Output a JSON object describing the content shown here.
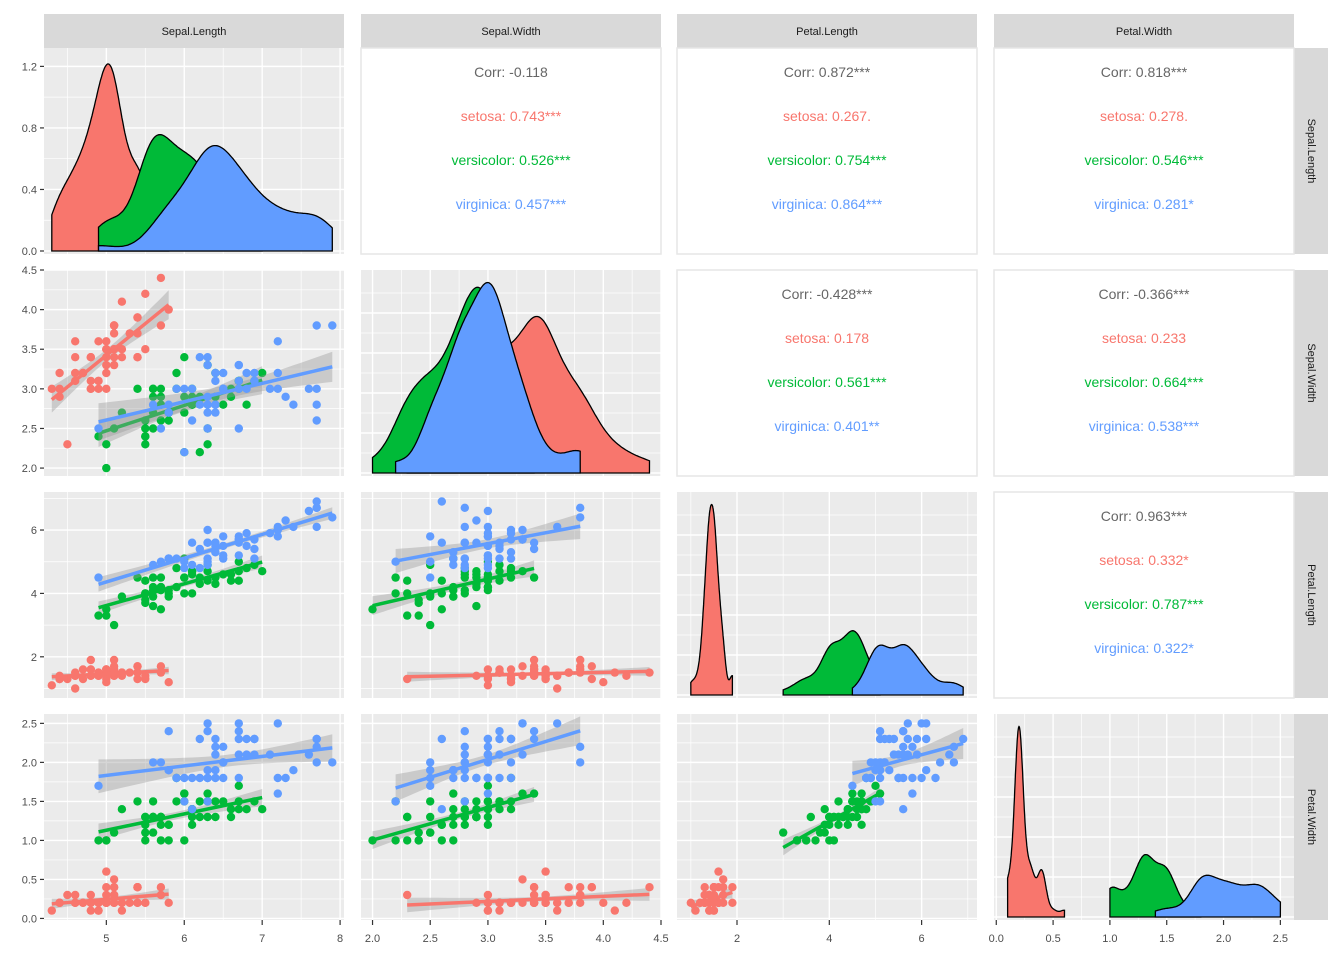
{
  "chart_data": {
    "type": "pairs",
    "title": "",
    "variables": [
      "Sepal.Length",
      "Sepal.Width",
      "Petal.Length",
      "Petal.Width"
    ],
    "species": [
      "setosa",
      "versicolor",
      "virginica"
    ],
    "colors": {
      "setosa": "#F8766D",
      "versicolor": "#00BA38",
      "virginica": "#619CFF",
      "overall": "#666666",
      "panel_bg": "#EBEBEB",
      "strip_bg": "#D9D9D9",
      "grid": "#FFFFFF"
    },
    "axes": {
      "Sepal.Length": {
        "range": [
          4.2,
          8.05
        ],
        "ticks": [
          5,
          6,
          7,
          8
        ],
        "tick_labels": [
          "5",
          "6",
          "7",
          "8"
        ]
      },
      "Sepal.Width": {
        "range": [
          1.9,
          4.5
        ],
        "ticks": [
          2.0,
          2.5,
          3.0,
          3.5,
          4.0,
          4.5
        ],
        "tick_labels": [
          "2.0",
          "2.5",
          "3.0",
          "3.5",
          "4.0",
          "4.5"
        ]
      },
      "Petal.Length": {
        "range": [
          0.7,
          7.2
        ],
        "ticks": [
          2,
          4,
          6
        ],
        "tick_labels": [
          "2",
          "4",
          "6"
        ]
      },
      "Petal.Width": {
        "range": [
          -0.02,
          2.62
        ],
        "ticks": [
          0.0,
          0.5,
          1.0,
          1.5,
          2.0,
          2.5
        ],
        "tick_labels": [
          "0.0",
          "0.5",
          "1.0",
          "1.5",
          "2.0",
          "2.5"
        ]
      },
      "density_left": {
        "range": [
          0,
          1.3
        ],
        "ticks": [
          0.0,
          0.4,
          0.8,
          1.2
        ],
        "tick_labels": [
          "0.0",
          "0.4",
          "0.8",
          "1.2"
        ]
      }
    },
    "correlations": [
      {
        "row": "Sepal.Length",
        "col": "Sepal.Width",
        "overall": "Corr: -0.118",
        "setosa": "setosa: 0.743***",
        "versicolor": "versicolor: 0.526***",
        "virginica": "virginica: 0.457***"
      },
      {
        "row": "Sepal.Length",
        "col": "Petal.Length",
        "overall": "Corr: 0.872***",
        "setosa": "setosa: 0.267.",
        "versicolor": "versicolor: 0.754***",
        "virginica": "virginica: 0.864***"
      },
      {
        "row": "Sepal.Length",
        "col": "Petal.Width",
        "overall": "Corr: 0.818***",
        "setosa": "setosa: 0.278.",
        "versicolor": "versicolor: 0.546***",
        "virginica": "virginica: 0.281*"
      },
      {
        "row": "Sepal.Width",
        "col": "Petal.Length",
        "overall": "Corr: -0.428***",
        "setosa": "setosa: 0.178",
        "versicolor": "versicolor: 0.561***",
        "virginica": "virginica: 0.401**"
      },
      {
        "row": "Sepal.Width",
        "col": "Petal.Width",
        "overall": "Corr: -0.366***",
        "setosa": "setosa: 0.233",
        "versicolor": "versicolor: 0.664***",
        "virginica": "virginica: 0.538***"
      },
      {
        "row": "Petal.Length",
        "col": "Petal.Width",
        "overall": "Corr: 0.963***",
        "setosa": "setosa: 0.332*",
        "versicolor": "versicolor: 0.787***",
        "virginica": "virginica: 0.322*"
      }
    ],
    "points": {
      "setosa": [
        [
          5.1,
          3.5,
          1.4,
          0.2
        ],
        [
          4.9,
          3.0,
          1.4,
          0.2
        ],
        [
          4.7,
          3.2,
          1.3,
          0.2
        ],
        [
          4.6,
          3.1,
          1.5,
          0.2
        ],
        [
          5.0,
          3.6,
          1.4,
          0.2
        ],
        [
          5.4,
          3.9,
          1.7,
          0.4
        ],
        [
          4.6,
          3.4,
          1.4,
          0.3
        ],
        [
          5.0,
          3.4,
          1.5,
          0.2
        ],
        [
          4.4,
          2.9,
          1.4,
          0.2
        ],
        [
          4.9,
          3.1,
          1.5,
          0.1
        ],
        [
          5.4,
          3.7,
          1.5,
          0.2
        ],
        [
          4.8,
          3.4,
          1.6,
          0.2
        ],
        [
          4.8,
          3.0,
          1.4,
          0.1
        ],
        [
          4.3,
          3.0,
          1.1,
          0.1
        ],
        [
          5.8,
          4.0,
          1.2,
          0.2
        ],
        [
          5.7,
          4.4,
          1.5,
          0.4
        ],
        [
          5.4,
          3.9,
          1.3,
          0.4
        ],
        [
          5.1,
          3.5,
          1.4,
          0.3
        ],
        [
          5.7,
          3.8,
          1.7,
          0.3
        ],
        [
          5.1,
          3.8,
          1.5,
          0.3
        ],
        [
          5.4,
          3.4,
          1.7,
          0.2
        ],
        [
          5.1,
          3.7,
          1.5,
          0.4
        ],
        [
          4.6,
          3.6,
          1.0,
          0.2
        ],
        [
          5.1,
          3.3,
          1.7,
          0.5
        ],
        [
          4.8,
          3.4,
          1.9,
          0.2
        ],
        [
          5.0,
          3.0,
          1.6,
          0.2
        ],
        [
          5.0,
          3.4,
          1.6,
          0.4
        ],
        [
          5.2,
          3.5,
          1.5,
          0.2
        ],
        [
          5.2,
          3.4,
          1.4,
          0.2
        ],
        [
          4.7,
          3.2,
          1.6,
          0.2
        ],
        [
          4.8,
          3.1,
          1.6,
          0.2
        ],
        [
          5.4,
          3.4,
          1.5,
          0.4
        ],
        [
          5.2,
          4.1,
          1.5,
          0.1
        ],
        [
          5.5,
          4.2,
          1.4,
          0.2
        ],
        [
          4.9,
          3.1,
          1.5,
          0.2
        ],
        [
          5.0,
          3.2,
          1.2,
          0.2
        ],
        [
          5.5,
          3.5,
          1.3,
          0.2
        ],
        [
          4.9,
          3.6,
          1.4,
          0.1
        ],
        [
          4.4,
          3.0,
          1.3,
          0.2
        ],
        [
          5.1,
          3.4,
          1.5,
          0.2
        ],
        [
          5.0,
          3.5,
          1.3,
          0.3
        ],
        [
          4.5,
          2.3,
          1.3,
          0.3
        ],
        [
          4.4,
          3.2,
          1.3,
          0.2
        ],
        [
          5.0,
          3.5,
          1.6,
          0.6
        ],
        [
          5.1,
          3.8,
          1.9,
          0.4
        ],
        [
          4.8,
          3.0,
          1.4,
          0.3
        ],
        [
          5.1,
          3.8,
          1.6,
          0.2
        ],
        [
          4.6,
          3.2,
          1.4,
          0.2
        ],
        [
          5.3,
          3.7,
          1.5,
          0.2
        ],
        [
          5.0,
          3.3,
          1.4,
          0.2
        ]
      ],
      "versicolor": [
        [
          7.0,
          3.2,
          4.7,
          1.4
        ],
        [
          6.4,
          3.2,
          4.5,
          1.5
        ],
        [
          6.9,
          3.1,
          4.9,
          1.5
        ],
        [
          5.5,
          2.3,
          4.0,
          1.3
        ],
        [
          6.5,
          2.8,
          4.6,
          1.5
        ],
        [
          5.7,
          2.8,
          4.5,
          1.3
        ],
        [
          6.3,
          3.3,
          4.7,
          1.6
        ],
        [
          4.9,
          2.4,
          3.3,
          1.0
        ],
        [
          6.6,
          2.9,
          4.6,
          1.3
        ],
        [
          5.2,
          2.7,
          3.9,
          1.4
        ],
        [
          5.0,
          2.0,
          3.5,
          1.0
        ],
        [
          5.9,
          3.0,
          4.2,
          1.5
        ],
        [
          6.0,
          2.2,
          4.0,
          1.0
        ],
        [
          6.1,
          2.9,
          4.7,
          1.4
        ],
        [
          5.6,
          2.9,
          3.6,
          1.3
        ],
        [
          6.7,
          3.1,
          4.4,
          1.4
        ],
        [
          5.6,
          3.0,
          4.5,
          1.5
        ],
        [
          5.8,
          2.7,
          4.1,
          1.0
        ],
        [
          6.2,
          2.2,
          4.5,
          1.5
        ],
        [
          5.6,
          2.5,
          3.9,
          1.1
        ],
        [
          5.9,
          3.2,
          4.8,
          1.8
        ],
        [
          6.1,
          2.8,
          4.0,
          1.3
        ],
        [
          6.3,
          2.5,
          4.9,
          1.5
        ],
        [
          6.1,
          2.8,
          4.7,
          1.2
        ],
        [
          6.4,
          2.9,
          4.3,
          1.3
        ],
        [
          6.6,
          3.0,
          4.4,
          1.4
        ],
        [
          6.8,
          2.8,
          4.8,
          1.4
        ],
        [
          6.7,
          3.0,
          5.0,
          1.7
        ],
        [
          6.0,
          2.9,
          4.5,
          1.5
        ],
        [
          5.7,
          2.6,
          3.5,
          1.0
        ],
        [
          5.5,
          2.4,
          3.8,
          1.1
        ],
        [
          5.5,
          2.4,
          3.7,
          1.0
        ],
        [
          5.8,
          2.7,
          3.9,
          1.2
        ],
        [
          6.0,
          2.7,
          5.1,
          1.6
        ],
        [
          5.4,
          3.0,
          4.5,
          1.5
        ],
        [
          6.0,
          3.4,
          4.5,
          1.6
        ],
        [
          6.7,
          3.1,
          4.7,
          1.5
        ],
        [
          6.3,
          2.3,
          4.4,
          1.3
        ],
        [
          5.6,
          3.0,
          4.1,
          1.3
        ],
        [
          5.5,
          2.5,
          4.0,
          1.3
        ],
        [
          5.5,
          2.6,
          4.4,
          1.2
        ],
        [
          6.1,
          3.0,
          4.6,
          1.4
        ],
        [
          5.8,
          2.6,
          4.0,
          1.2
        ],
        [
          5.0,
          2.3,
          3.3,
          1.0
        ],
        [
          5.6,
          2.7,
          4.2,
          1.3
        ],
        [
          5.7,
          3.0,
          4.2,
          1.2
        ],
        [
          5.7,
          2.9,
          4.2,
          1.3
        ],
        [
          6.2,
          2.9,
          4.3,
          1.3
        ],
        [
          5.1,
          2.5,
          3.0,
          1.1
        ],
        [
          5.7,
          2.8,
          4.1,
          1.3
        ]
      ],
      "virginica": [
        [
          6.3,
          3.3,
          6.0,
          2.5
        ],
        [
          5.8,
          2.7,
          5.1,
          1.9
        ],
        [
          7.1,
          3.0,
          5.9,
          2.1
        ],
        [
          6.3,
          2.9,
          5.6,
          1.8
        ],
        [
          6.5,
          3.0,
          5.8,
          2.2
        ],
        [
          7.6,
          3.0,
          6.6,
          2.1
        ],
        [
          4.9,
          2.5,
          4.5,
          1.7
        ],
        [
          7.3,
          2.9,
          6.3,
          1.8
        ],
        [
          6.7,
          2.5,
          5.8,
          1.8
        ],
        [
          7.2,
          3.6,
          6.1,
          2.5
        ],
        [
          6.5,
          3.2,
          5.1,
          2.0
        ],
        [
          6.4,
          2.7,
          5.3,
          1.9
        ],
        [
          6.8,
          3.0,
          5.5,
          2.1
        ],
        [
          5.7,
          2.5,
          5.0,
          2.0
        ],
        [
          5.8,
          2.8,
          5.1,
          2.4
        ],
        [
          6.4,
          3.2,
          5.3,
          2.3
        ],
        [
          6.5,
          3.0,
          5.5,
          1.8
        ],
        [
          7.7,
          3.8,
          6.7,
          2.2
        ],
        [
          7.7,
          2.6,
          6.9,
          2.3
        ],
        [
          6.0,
          2.2,
          5.0,
          1.5
        ],
        [
          6.9,
          3.2,
          5.7,
          2.3
        ],
        [
          5.6,
          2.8,
          4.9,
          2.0
        ],
        [
          7.7,
          2.8,
          6.7,
          2.0
        ],
        [
          6.3,
          2.7,
          4.9,
          1.8
        ],
        [
          6.7,
          3.3,
          5.7,
          2.1
        ],
        [
          7.2,
          3.2,
          6.0,
          1.8
        ],
        [
          6.2,
          2.8,
          4.8,
          1.8
        ],
        [
          6.1,
          3.0,
          4.9,
          1.8
        ],
        [
          6.4,
          2.8,
          5.6,
          2.1
        ],
        [
          7.2,
          3.0,
          5.8,
          1.6
        ],
        [
          7.4,
          2.8,
          6.1,
          1.9
        ],
        [
          7.9,
          3.8,
          6.4,
          2.0
        ],
        [
          6.4,
          2.8,
          5.6,
          2.2
        ],
        [
          6.3,
          2.8,
          5.1,
          1.5
        ],
        [
          6.1,
          2.6,
          5.6,
          1.4
        ],
        [
          7.7,
          3.0,
          6.1,
          2.3
        ],
        [
          6.3,
          3.4,
          5.6,
          2.4
        ],
        [
          6.4,
          3.1,
          5.5,
          1.8
        ],
        [
          6.0,
          3.0,
          4.8,
          1.8
        ],
        [
          6.9,
          3.1,
          5.4,
          2.1
        ],
        [
          6.7,
          3.1,
          5.6,
          2.4
        ],
        [
          6.9,
          3.1,
          5.1,
          2.3
        ],
        [
          5.8,
          2.7,
          5.1,
          1.9
        ],
        [
          6.8,
          3.2,
          5.9,
          2.3
        ],
        [
          6.7,
          3.3,
          5.7,
          2.5
        ],
        [
          6.7,
          3.0,
          5.2,
          2.3
        ],
        [
          6.3,
          2.5,
          5.0,
          1.9
        ],
        [
          6.5,
          3.0,
          5.2,
          2.0
        ],
        [
          6.2,
          3.4,
          5.4,
          2.3
        ],
        [
          5.9,
          3.0,
          5.1,
          1.8
        ]
      ]
    },
    "density_peaks": {
      "Sepal.Length": {
        "setosa": 1.23,
        "versicolor": 0.73,
        "virginica": 0.71
      },
      "Sepal.Width": {
        "setosa": 0.9,
        "versicolor": 1.2,
        "virginica": 1.27
      },
      "Petal.Length": {
        "setosa": 2.5,
        "versicolor": 0.8,
        "virginica": 0.6
      },
      "Petal.Width": {
        "setosa": 8.0,
        "versicolor": 2.2,
        "virginica": 1.5
      }
    },
    "smoothing": "lm with 95% CI band",
    "grid": true,
    "legend": "none"
  }
}
